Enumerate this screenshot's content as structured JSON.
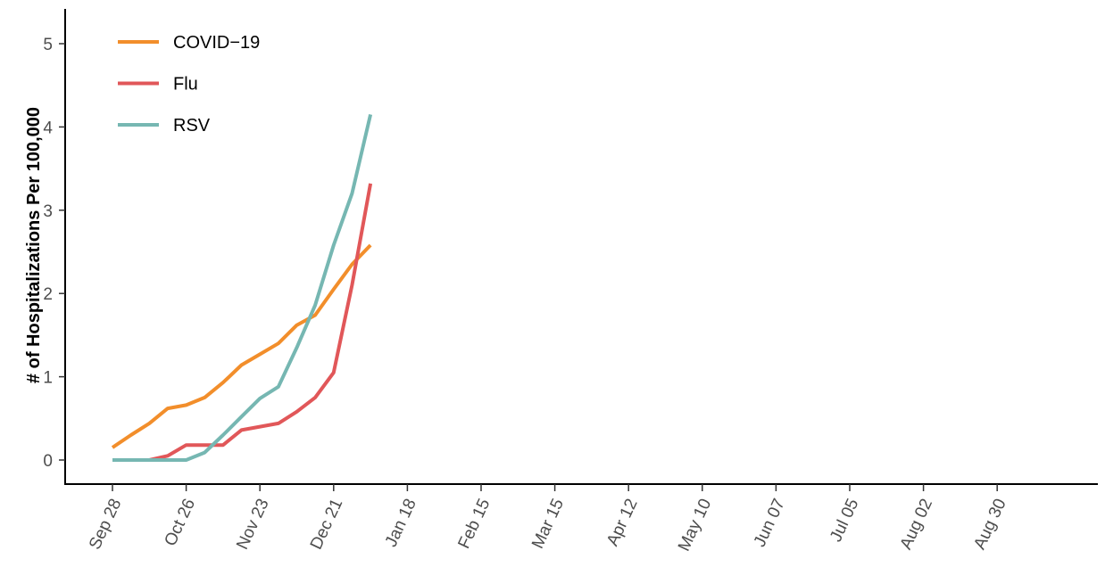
{
  "chart_data": {
    "type": "line",
    "title": "",
    "xlabel": "",
    "ylabel": "# of Hospitalizations Per 100,000",
    "ylim": [
      0,
      5
    ],
    "y_ticks": [
      "0",
      "1",
      "2",
      "3",
      "4",
      "5"
    ],
    "x_ticks": [
      "Sep 28",
      "Oct 26",
      "Nov 23",
      "Dec 21",
      "Jan 18",
      "Feb 15",
      "Mar 15",
      "Apr 12",
      "May 10",
      "Jun 07",
      "Jul 05",
      "Aug 02",
      "Aug 30"
    ],
    "x_weeks": [
      "Sep 28",
      "Oct 05",
      "Oct 12",
      "Oct 19",
      "Oct 26",
      "Nov 02",
      "Nov 09",
      "Nov 16",
      "Nov 23",
      "Nov 30",
      "Dec 07",
      "Dec 14",
      "Dec 21",
      "Dec 28",
      "Jan 04"
    ],
    "grid": false,
    "legend_position": "top-left",
    "series": [
      {
        "name": "COVID−19",
        "color": "#f28e2b",
        "values": [
          0.15,
          0.3,
          0.44,
          0.62,
          0.66,
          0.75,
          0.93,
          1.14,
          1.27,
          1.4,
          1.62,
          1.74,
          2.05,
          2.35,
          2.58
        ]
      },
      {
        "name": "Flu",
        "color": "#e15759",
        "values": [
          0.0,
          0.0,
          0.0,
          0.05,
          0.18,
          0.18,
          0.18,
          0.36,
          0.4,
          0.44,
          0.58,
          0.75,
          1.05,
          2.1,
          3.32
        ]
      },
      {
        "name": "RSV",
        "color": "#76b7b2",
        "values": [
          0.0,
          0.0,
          0.0,
          0.0,
          0.0,
          0.09,
          0.3,
          0.52,
          0.74,
          0.88,
          1.35,
          1.86,
          2.58,
          3.2,
          4.15
        ]
      }
    ]
  }
}
